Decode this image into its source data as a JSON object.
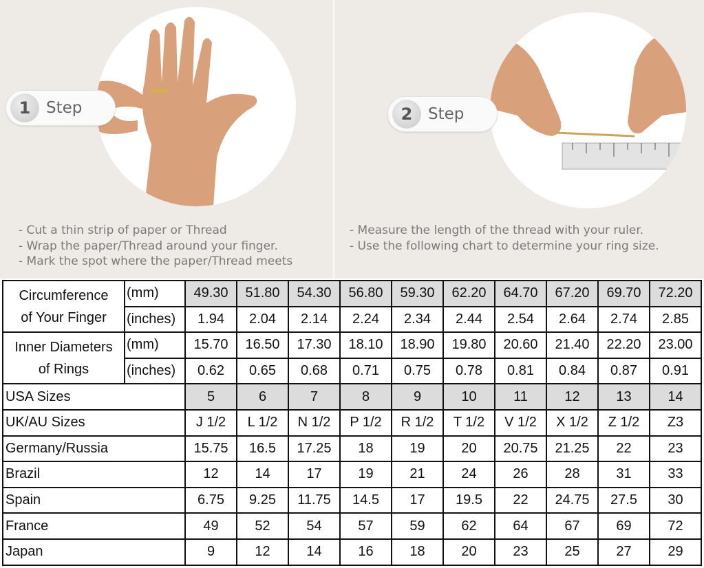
{
  "steps": [
    {
      "number": "1",
      "label": "Step",
      "instructions": [
        "- Cut a thin strip of paper or Thread",
        "- Wrap the paper/Thread around your finger.",
        "- Mark the spot where the paper/Thread meets"
      ]
    },
    {
      "number": "2",
      "label": "Step",
      "instructions": [
        "- Measure the length of the thread with your ruler.",
        "- Use the following chart to determine your ring size."
      ]
    }
  ],
  "colors": {
    "background": "#eeebe6",
    "highlight": "#dcdcdc",
    "skin": "#d9a07c"
  },
  "table": {
    "circumference": {
      "label_line1": "Circumference",
      "label_line2": "of Your Finger",
      "mm_unit": "(mm)",
      "mm": [
        "49.30",
        "51.80",
        "54.30",
        "56.80",
        "59.30",
        "62.20",
        "64.70",
        "67.20",
        "69.70",
        "72.20"
      ],
      "in_unit": "(inches)",
      "in": [
        "1.94",
        "2.04",
        "2.14",
        "2.24",
        "2.34",
        "2.44",
        "2.54",
        "2.64",
        "2.74",
        "2.85"
      ]
    },
    "inner_diameter": {
      "label_line1": "Inner Diameters",
      "label_line2": "of Rings",
      "mm_unit": "(mm)",
      "mm": [
        "15.70",
        "16.50",
        "17.30",
        "18.10",
        "18.90",
        "19.80",
        "20.60",
        "21.40",
        "22.20",
        "23.00"
      ],
      "in_unit": "(inches)",
      "in": [
        "0.62",
        "0.65",
        "0.68",
        "0.71",
        "0.75",
        "0.78",
        "0.81",
        "0.84",
        "0.87",
        "0.91"
      ]
    },
    "rows": [
      {
        "label": "USA Sizes",
        "gray": true,
        "values": [
          "5",
          "6",
          "7",
          "8",
          "9",
          "10",
          "11",
          "12",
          "13",
          "14"
        ]
      },
      {
        "label": "UK/AU Sizes",
        "values": [
          "J 1/2",
          "L 1/2",
          "N 1/2",
          "P 1/2",
          "R 1/2",
          "T 1/2",
          "V 1/2",
          "X 1/2",
          "Z 1/2",
          "Z3"
        ]
      },
      {
        "label": "Germany/Russia",
        "values": [
          "15.75",
          "16.5",
          "17.25",
          "18",
          "19",
          "20",
          "20.75",
          "21.25",
          "22",
          "23"
        ]
      },
      {
        "label": "Brazil",
        "values": [
          "12",
          "14",
          "17",
          "19",
          "21",
          "24",
          "26",
          "28",
          "31",
          "33"
        ]
      },
      {
        "label": "Spain",
        "values": [
          "6.75",
          "9.25",
          "11.75",
          "14.5",
          "17",
          "19.5",
          "22",
          "24.75",
          "27.5",
          "30"
        ]
      },
      {
        "label": "France",
        "values": [
          "49",
          "52",
          "54",
          "57",
          "59",
          "62",
          "64",
          "67",
          "69",
          "72"
        ]
      },
      {
        "label": "Japan",
        "values": [
          "9",
          "12",
          "14",
          "16",
          "18",
          "20",
          "23",
          "25",
          "27",
          "29"
        ]
      }
    ]
  }
}
